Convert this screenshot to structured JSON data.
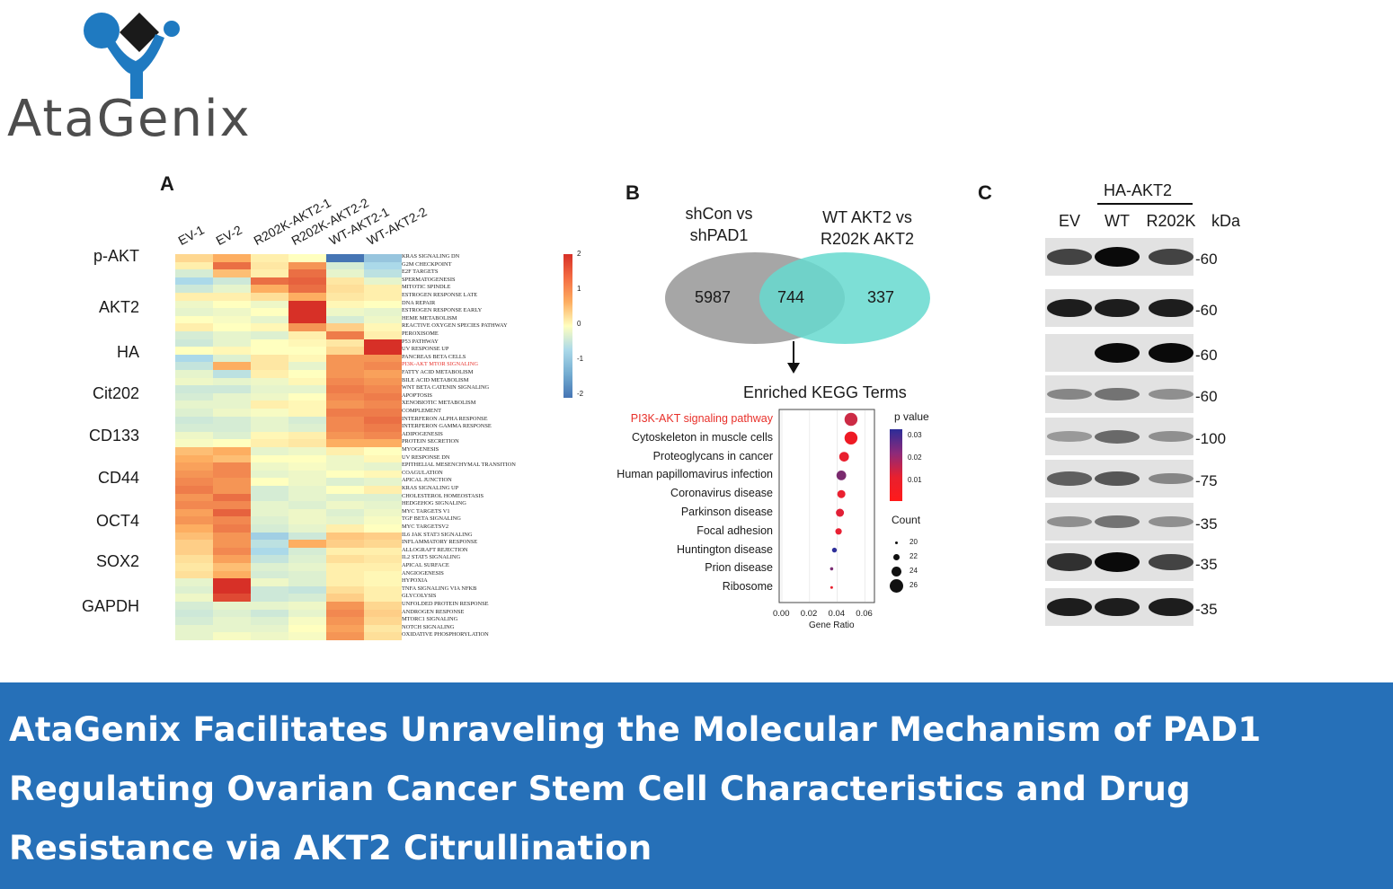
{
  "logo": {
    "text": "AtaGenix",
    "colors": {
      "blue": "#1f7ac1",
      "dark": "#1a1a1a",
      "gray": "#4d4d4d"
    }
  },
  "panel_a": {
    "letter": "A",
    "columns": [
      "EV-1",
      "EV-2",
      "R202K-AKT2-1",
      "R202K-AKT2-2",
      "WT-AKT2-1",
      "WT-AKT2-2"
    ],
    "rows": [
      "KRAS SIGNALING DN",
      "G2M CHECKPOINT",
      "E2F TARGETS",
      "SPERMATOGENESIS",
      "MITOTIC SPINDLE",
      "ESTROGEN RESPONSE LATE",
      "DNA REPAIR",
      "ESTROGEN RESPONSE EARLY",
      "HEME METABOLISM",
      "REACTIVE OXYGEN SPECIES PATHWAY",
      "PEROXISOME",
      "P53 PATHWAY",
      "UV RESPONSE UP",
      "PANCREAS BETA CELLS",
      "PI3K-AKT MTOR SIGNALING",
      "FATTY ACID METABOLISM",
      "BILE ACID METABOLISM",
      "WNT BETA CATENIN SIGNALING",
      "APOPTOSIS",
      "XENOBIOTIC METABOLISM",
      "COMPLEMENT",
      "INTERFERON ALPHA RESPONSE",
      "INTERFERON GAMMA RESPONSE",
      "ADIPOGENESIS",
      "PROTEIN SECRETION",
      "MYOGENESIS",
      "UV RESPONSE DN",
      "EPITHELIAL MESENCHYMAL TRANSITION",
      "COAGULATION",
      "APICAL JUNCTION",
      "KRAS SIGNALING UP",
      "CHOLESTEROL HOMEOSTASIS",
      "HEDGEHOG SIGNALING",
      "MYC TARGETS V1",
      "TGF BETA SIGNALING",
      "MYC TARGETSV2",
      "IL6 JAK STAT3 SIGNALING",
      "INFLAMMATORY RESPONSE",
      "ALLOGRAFT REJECTION",
      "IL2 STAT5 SIGNALING",
      "APICAL SURFACE",
      "ANGIOGENESIS",
      "HYPOXIA",
      "TNFA SIGNALING VIA NFKB",
      "GLYCOLYSIS",
      "UNFOLDED PROTEIN RESPONSE",
      "ANDROGEN RESPONSE",
      "MTORC1 SIGNALING",
      "NOTCH SIGNALING",
      "OXIDATIVE PHOSPHORYLATION"
    ],
    "highlight_row": "PI3K-AKT MTOR SIGNALING",
    "highlight_color": "#e8302a",
    "values": [
      [
        0.5,
        1.0,
        0.2,
        0.0,
        -2.0,
        -1.2
      ],
      [
        0.2,
        1.5,
        0.3,
        1.2,
        -0.5,
        -1.0
      ],
      [
        -0.5,
        0.8,
        0.2,
        1.5,
        -0.3,
        -0.8
      ],
      [
        -1.0,
        -0.6,
        1.5,
        1.6,
        0.3,
        -0.3
      ],
      [
        -0.6,
        -0.3,
        1.0,
        1.5,
        0.4,
        0.2
      ],
      [
        0.2,
        0.2,
        0.4,
        1.0,
        0.3,
        0.2
      ],
      [
        -0.2,
        0.0,
        -0.2,
        2.0,
        0.1,
        0.0
      ],
      [
        -0.3,
        -0.2,
        0.0,
        2.0,
        -0.2,
        -0.3
      ],
      [
        0.0,
        -0.1,
        -0.3,
        2.0,
        -0.5,
        -0.2
      ],
      [
        0.2,
        0.0,
        0.1,
        1.2,
        0.6,
        0.1
      ],
      [
        -0.5,
        -0.3,
        -0.4,
        0.2,
        1.4,
        0.2
      ],
      [
        -0.6,
        -0.3,
        0.0,
        0.1,
        0.3,
        2.0
      ],
      [
        0.0,
        0.1,
        0.0,
        0.0,
        0.5,
        2.0
      ],
      [
        -1.0,
        -0.4,
        0.3,
        0.1,
        1.2,
        1.2
      ],
      [
        -0.7,
        1.0,
        0.3,
        -0.3,
        1.2,
        1.3
      ],
      [
        -0.3,
        -0.8,
        0.2,
        0.0,
        1.2,
        1.1
      ],
      [
        -0.2,
        -0.3,
        -0.2,
        0.1,
        1.3,
        1.2
      ],
      [
        -0.6,
        -0.6,
        -0.3,
        -0.3,
        1.4,
        1.3
      ],
      [
        -0.5,
        -0.3,
        -0.2,
        0.0,
        1.3,
        1.4
      ],
      [
        -0.3,
        -0.3,
        0.2,
        0.1,
        1.2,
        1.3
      ],
      [
        -0.4,
        -0.2,
        -0.1,
        0.1,
        1.4,
        1.4
      ],
      [
        -0.6,
        -0.5,
        -0.3,
        -0.5,
        1.3,
        1.5
      ],
      [
        -0.5,
        -0.5,
        -0.3,
        -0.4,
        1.3,
        1.4
      ],
      [
        -0.2,
        -0.4,
        0.1,
        0.2,
        1.2,
        1.3
      ],
      [
        -0.1,
        0.0,
        0.2,
        0.3,
        1.0,
        1.0
      ],
      [
        0.8,
        1.0,
        -0.3,
        -0.2,
        0.2,
        0.0
      ],
      [
        1.0,
        0.8,
        0.0,
        0.0,
        -0.2,
        0.1
      ],
      [
        1.1,
        1.3,
        -0.2,
        -0.1,
        -0.2,
        -0.3
      ],
      [
        1.2,
        1.3,
        -0.3,
        -0.2,
        0.0,
        0.1
      ],
      [
        1.3,
        1.2,
        0.0,
        -0.2,
        -0.4,
        -0.3
      ],
      [
        1.4,
        1.2,
        -0.5,
        -0.3,
        0.0,
        0.2
      ],
      [
        1.2,
        1.5,
        -0.5,
        -0.3,
        -0.4,
        -0.4
      ],
      [
        1.3,
        1.3,
        -0.3,
        -0.4,
        -0.2,
        -0.3
      ],
      [
        1.1,
        1.6,
        -0.3,
        -0.2,
        -0.4,
        -0.2
      ],
      [
        1.2,
        1.3,
        -0.4,
        -0.2,
        -0.3,
        -0.1
      ],
      [
        1.0,
        1.4,
        -0.5,
        -0.3,
        0.2,
        0.0
      ],
      [
        0.8,
        1.2,
        -1.1,
        -0.6,
        0.7,
        0.6
      ],
      [
        0.6,
        1.2,
        -0.8,
        1.0,
        0.6,
        0.5
      ],
      [
        0.6,
        1.3,
        -1.0,
        -0.5,
        0.2,
        0.2
      ],
      [
        0.4,
        1.1,
        -0.7,
        -0.4,
        0.4,
        0.3
      ],
      [
        0.3,
        0.8,
        -0.4,
        -0.3,
        0.2,
        0.2
      ],
      [
        0.4,
        1.0,
        -0.5,
        -0.4,
        0.2,
        0.1
      ],
      [
        -0.3,
        2.0,
        -0.2,
        -0.4,
        0.2,
        0.1
      ],
      [
        -0.4,
        2.0,
        -0.6,
        -0.7,
        0.4,
        0.2
      ],
      [
        -0.2,
        1.8,
        -0.6,
        -0.5,
        0.6,
        0.2
      ],
      [
        -0.5,
        -0.3,
        -0.3,
        -0.2,
        1.2,
        0.5
      ],
      [
        -0.6,
        -0.4,
        -0.6,
        -0.3,
        1.3,
        0.6
      ],
      [
        -0.5,
        -0.3,
        -0.4,
        -0.1,
        1.2,
        0.5
      ],
      [
        -0.3,
        -0.3,
        -0.3,
        0.0,
        1.1,
        0.3
      ],
      [
        -0.3,
        -0.1,
        -0.2,
        -0.1,
        1.2,
        0.4
      ]
    ],
    "scale": {
      "ticks": [
        "2",
        "1",
        "0",
        "-1",
        "-2"
      ],
      "min": -2,
      "max": 2
    }
  },
  "panel_b": {
    "letter": "B",
    "venn": {
      "left_title_line1": "shCon vs",
      "left_title_line2": "shPAD1",
      "right_title_line1": "WT AKT2 vs",
      "right_title_line2": "R202K AKT2",
      "left_only": "5987",
      "overlap": "744",
      "right_only": "337",
      "left_color": "#a6a6a6",
      "right_color": "#66d9cf"
    },
    "kegg": {
      "title": "Enriched KEGG Terms",
      "terms": [
        "PI3K-AKT signaling pathway",
        "Cytoskeleton in muscle cells",
        "Proteoglycans in cancer",
        "Human papillomavirus infection",
        "Coronavirus disease",
        "Parkinson disease",
        "Focal adhesion",
        "Huntington disease",
        "Prion disease",
        "Ribosome"
      ],
      "gene_ratio": [
        0.05,
        0.05,
        0.045,
        0.043,
        0.043,
        0.042,
        0.041,
        0.038,
        0.036,
        0.036
      ],
      "count": [
        26,
        26,
        24,
        24,
        23,
        23,
        22,
        21,
        20,
        19
      ],
      "color": [
        "#cc2b45",
        "#ee1a24",
        "#e91f2e",
        "#7a2a6e",
        "#ea2030",
        "#e11f36",
        "#e82033",
        "#2e2f9a",
        "#7b2e74",
        "#e8202e"
      ],
      "highlight_term": "PI3K-AKT signaling pathway",
      "xlabel": "Gene Ratio",
      "xticks": [
        "0.00",
        "0.02",
        "0.04",
        "0.06"
      ],
      "pvalue_title": "p value",
      "pvalue_ticks": [
        "0.03",
        "0.02",
        "0.01"
      ],
      "count_title": "Count",
      "count_ticks": [
        "20",
        "22",
        "24",
        "26"
      ]
    }
  },
  "panel_c": {
    "letter": "C",
    "group_label": "HA-AKT2",
    "lanes": [
      "EV",
      "WT",
      "R202K"
    ],
    "kda_header": "kDa",
    "blots": [
      {
        "label": "p-AKT",
        "kda": "-60",
        "intensity": [
          0.7,
          1.0,
          0.7
        ]
      },
      {
        "label": "AKT2",
        "kda": "-60",
        "intensity": [
          0.9,
          0.9,
          0.9
        ]
      },
      {
        "label": "HA",
        "kda": "-60",
        "intensity": [
          0.0,
          1.0,
          1.0
        ]
      },
      {
        "label": "Cit202",
        "kda": "-60",
        "intensity": [
          0.35,
          0.45,
          0.3
        ]
      },
      {
        "label": "CD133",
        "kda": "-100",
        "intensity": [
          0.25,
          0.5,
          0.3
        ]
      },
      {
        "label": "CD44",
        "kda": "-75",
        "intensity": [
          0.55,
          0.6,
          0.35
        ]
      },
      {
        "label": "OCT4",
        "kda": "-35",
        "intensity": [
          0.3,
          0.45,
          0.3
        ]
      },
      {
        "label": "SOX2",
        "kda": "-35",
        "intensity": [
          0.8,
          1.0,
          0.7
        ]
      },
      {
        "label": "GAPDH",
        "kda": "-35",
        "intensity": [
          0.9,
          0.9,
          0.9
        ]
      }
    ]
  },
  "banner": {
    "text": "AtaGenix Facilitates Unraveling the Molecular Mechanism of PAD1 Regulating Ovarian Cancer Stem Cell Characteristics and Drug Resistance via AKT2 Citrullination",
    "background": "#2670b8"
  }
}
